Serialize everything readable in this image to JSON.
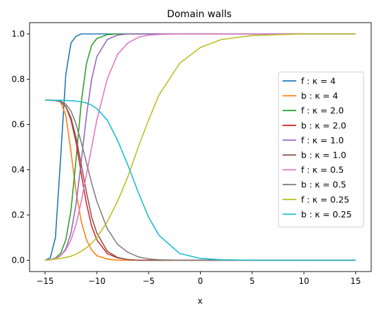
{
  "chart_data": {
    "type": "line",
    "title": "Domain walls",
    "xlabel": "x",
    "ylabel": "",
    "xlim": [
      -16.5,
      16.5
    ],
    "ylim": [
      -0.05,
      1.05
    ],
    "xticks": [
      -15,
      -10,
      -5,
      0,
      5,
      10,
      15
    ],
    "xtick_labels": [
      "−15",
      "−10",
      "−5",
      "0",
      "5",
      "10",
      "15"
    ],
    "yticks": [
      0.0,
      0.2,
      0.4,
      0.6,
      0.8,
      1.0
    ],
    "ytick_labels": [
      "0.0",
      "0.2",
      "0.4",
      "0.6",
      "0.8",
      "1.0"
    ],
    "grid": false,
    "legend_position": "center-right",
    "x": [
      -15,
      -14.5,
      -14,
      -13.5,
      -13,
      -12.5,
      -12,
      -11.5,
      -11,
      -10.5,
      -10,
      -9,
      -8,
      -7,
      -6,
      -5,
      -4,
      -2,
      0,
      2,
      5,
      10,
      15
    ],
    "series": [
      {
        "name": "f : κ = 4",
        "color": "#1f77b4",
        "values": [
          0.0,
          0.01,
          0.1,
          0.45,
          0.82,
          0.96,
          0.99,
          1.0,
          1.0,
          1.0,
          1.0,
          1.0,
          1.0,
          1.0,
          1.0,
          1.0,
          1.0,
          1.0,
          1.0,
          1.0,
          1.0,
          1.0,
          1.0
        ]
      },
      {
        "name": "b : κ = 4",
        "color": "#ff7f0e",
        "values": [
          0.707,
          0.707,
          0.706,
          0.7,
          0.64,
          0.48,
          0.3,
          0.17,
          0.09,
          0.045,
          0.02,
          0.005,
          0.0,
          0.0,
          0.0,
          0.0,
          0.0,
          0.0,
          0.0,
          0.0,
          0.0,
          0.0,
          0.0
        ]
      },
      {
        "name": "f : κ = 2.0",
        "color": "#2ca02c",
        "values": [
          0.0,
          0.002,
          0.01,
          0.03,
          0.09,
          0.22,
          0.45,
          0.7,
          0.87,
          0.95,
          0.98,
          0.997,
          1.0,
          1.0,
          1.0,
          1.0,
          1.0,
          1.0,
          1.0,
          1.0,
          1.0,
          1.0,
          1.0
        ]
      },
      {
        "name": "b : κ = 2.0",
        "color": "#d62728",
        "values": [
          0.707,
          0.707,
          0.706,
          0.7,
          0.68,
          0.62,
          0.52,
          0.38,
          0.25,
          0.15,
          0.09,
          0.03,
          0.01,
          0.003,
          0.0,
          0.0,
          0.0,
          0.0,
          0.0,
          0.0,
          0.0,
          0.0,
          0.0
        ]
      },
      {
        "name": "f : κ = 1.0",
        "color": "#9467bd",
        "values": [
          0.0,
          0.002,
          0.006,
          0.02,
          0.05,
          0.12,
          0.25,
          0.44,
          0.64,
          0.8,
          0.9,
          0.975,
          0.995,
          1.0,
          1.0,
          1.0,
          1.0,
          1.0,
          1.0,
          1.0,
          1.0,
          1.0,
          1.0
        ]
      },
      {
        "name": "b : κ = 1.0",
        "color": "#8c564b",
        "values": [
          0.707,
          0.707,
          0.706,
          0.7,
          0.68,
          0.63,
          0.54,
          0.42,
          0.3,
          0.19,
          0.12,
          0.04,
          0.012,
          0.003,
          0.0,
          0.0,
          0.0,
          0.0,
          0.0,
          0.0,
          0.0,
          0.0,
          0.0
        ]
      },
      {
        "name": "f : κ = 0.5",
        "color": "#e377c2",
        "values": [
          0.0,
          0.003,
          0.008,
          0.02,
          0.045,
          0.09,
          0.16,
          0.26,
          0.38,
          0.5,
          0.62,
          0.8,
          0.91,
          0.96,
          0.985,
          0.995,
          0.998,
          1.0,
          1.0,
          1.0,
          1.0,
          1.0,
          1.0
        ]
      },
      {
        "name": "b : κ = 0.5",
        "color": "#7f7f7f",
        "values": [
          0.707,
          0.707,
          0.706,
          0.703,
          0.69,
          0.66,
          0.6,
          0.52,
          0.43,
          0.34,
          0.26,
          0.14,
          0.07,
          0.035,
          0.015,
          0.006,
          0.002,
          0.0,
          0.0,
          0.0,
          0.0,
          0.0,
          0.0
        ]
      },
      {
        "name": "f : κ = 0.25",
        "color": "#bcbd22",
        "values": [
          0.0,
          0.002,
          0.005,
          0.008,
          0.012,
          0.018,
          0.027,
          0.04,
          0.055,
          0.075,
          0.1,
          0.17,
          0.26,
          0.37,
          0.5,
          0.62,
          0.73,
          0.87,
          0.94,
          0.975,
          0.993,
          1.0,
          1.0
        ]
      },
      {
        "name": "b : κ = 0.25",
        "color": "#17becf",
        "values": [
          0.707,
          0.707,
          0.707,
          0.707,
          0.706,
          0.705,
          0.703,
          0.7,
          0.695,
          0.685,
          0.67,
          0.62,
          0.53,
          0.42,
          0.3,
          0.19,
          0.11,
          0.03,
          0.008,
          0.002,
          0.0,
          0.0,
          0.0
        ]
      }
    ]
  }
}
